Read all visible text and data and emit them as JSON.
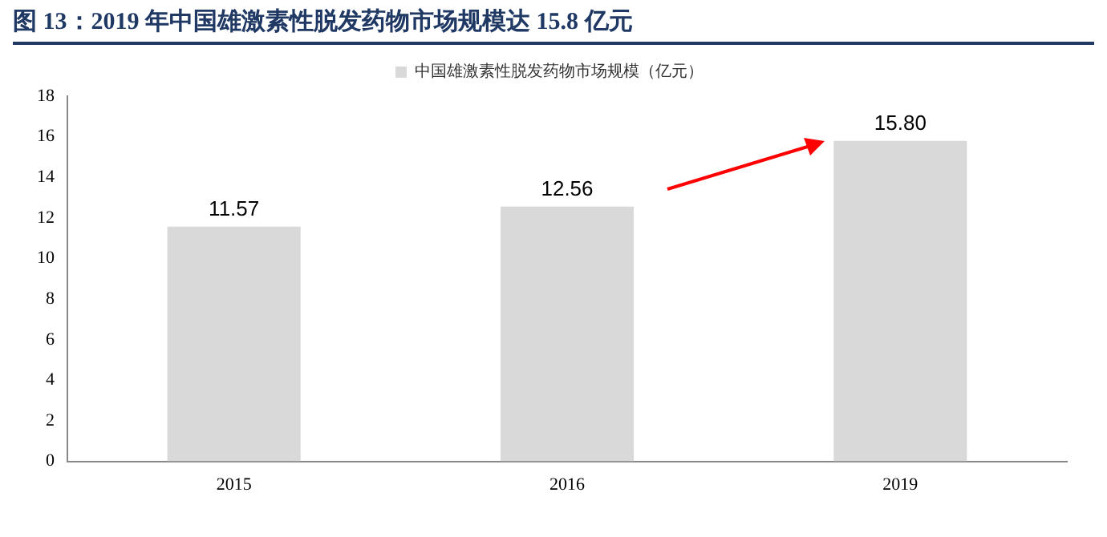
{
  "chart_data": {
    "type": "bar",
    "title": "图 13：2019 年中国雄激素性脱发药物市场规模达 15.8 亿元",
    "categories": [
      "2015",
      "2016",
      "2019"
    ],
    "series": [
      {
        "name": "中国雄激素性脱发药物市场规模（亿元）",
        "color": "#d9d9d9",
        "values": [
          11.57,
          12.56,
          15.8
        ]
      }
    ],
    "value_labels": [
      "11.57",
      "12.56",
      "15.80"
    ],
    "ylim": [
      0,
      18
    ],
    "yticks": [
      0,
      2,
      4,
      6,
      8,
      10,
      12,
      14,
      16,
      18
    ],
    "grid": false,
    "legend": "top"
  }
}
